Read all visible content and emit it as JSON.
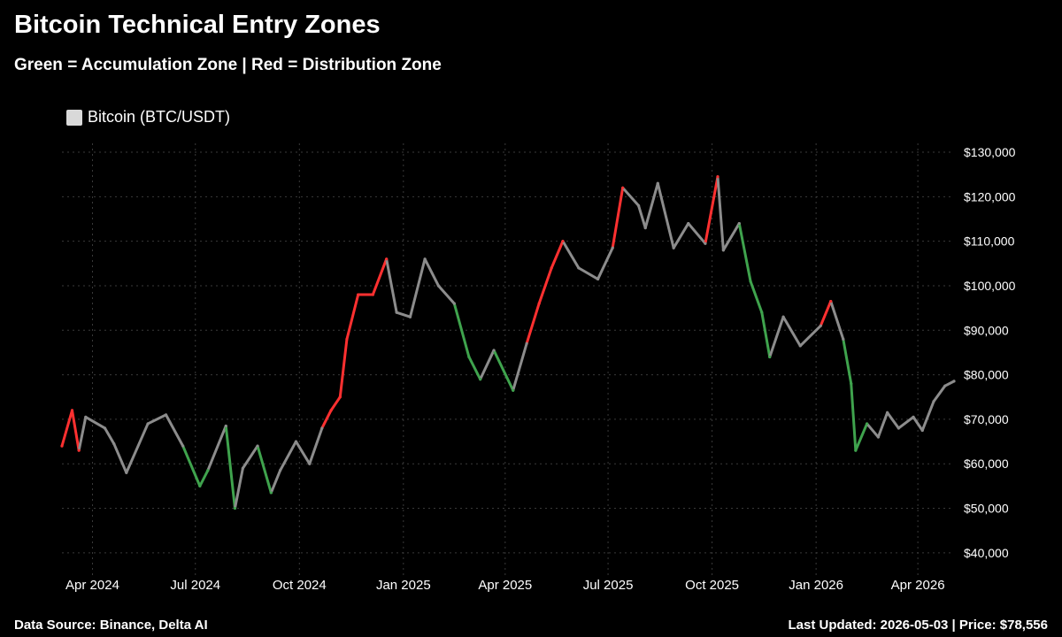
{
  "header": {
    "title": "Bitcoin Technical Entry Zones",
    "subtitle": "Green = Accumulation Zone | Red = Distribution Zone"
  },
  "legend": {
    "label": "Bitcoin (BTC/USDT)",
    "color": "#d9d9d9",
    "placement": "top-left"
  },
  "footer": {
    "source": "Data Source: Binance, Delta AI",
    "updated": "Last Updated: 2026-05-03 | Price: $78,556"
  },
  "colors": {
    "normal": "#8c8c8c",
    "accumulation": "#3fa34d",
    "distribution": "#ff3030",
    "grid": "#3a3a3a"
  },
  "chart_data": {
    "type": "line",
    "title": "Bitcoin Technical Entry Zones",
    "subtitle": "Green = Accumulation Zone | Red = Distribution Zone",
    "xlabel": "",
    "ylabel": "",
    "grid": true,
    "ylim": [
      35000,
      132000
    ],
    "y_ticks": [
      {
        "value": 130000,
        "label": "$130,000"
      },
      {
        "value": 120000,
        "label": "$120,000"
      },
      {
        "value": 110000,
        "label": "$110,000"
      },
      {
        "value": 100000,
        "label": "$100,000"
      },
      {
        "value": 90000,
        "label": "$90,000"
      },
      {
        "value": 80000,
        "label": "$80,000"
      },
      {
        "value": 70000,
        "label": "$70,000"
      },
      {
        "value": 60000,
        "label": "$60,000"
      },
      {
        "value": 50000,
        "label": "$50,000"
      },
      {
        "value": 40000,
        "label": "$40,000"
      }
    ],
    "x_range": [
      "2024-03-05",
      "2026-05-03"
    ],
    "x_ticks": [
      {
        "date": "2024-04-01",
        "label": "Apr 2024"
      },
      {
        "date": "2024-07-01",
        "label": "Jul 2024"
      },
      {
        "date": "2024-10-01",
        "label": "Oct 2024"
      },
      {
        "date": "2025-01-01",
        "label": "Jan 2025"
      },
      {
        "date": "2025-04-01",
        "label": "Apr 2025"
      },
      {
        "date": "2025-07-01",
        "label": "Jul 2025"
      },
      {
        "date": "2025-10-01",
        "label": "Oct 2025"
      },
      {
        "date": "2026-01-01",
        "label": "Jan 2026"
      },
      {
        "date": "2026-04-01",
        "label": "Apr 2026"
      }
    ],
    "series": [
      {
        "name": "Bitcoin (BTC/USDT)",
        "points": [
          [
            "2024-03-05",
            64000,
            "distribution"
          ],
          [
            "2024-03-14",
            72000,
            "distribution"
          ],
          [
            "2024-03-20",
            63000,
            "distribution"
          ],
          [
            "2024-03-26",
            70500,
            "normal"
          ],
          [
            "2024-04-12",
            68000,
            "normal"
          ],
          [
            "2024-04-20",
            64500,
            "normal"
          ],
          [
            "2024-05-01",
            58000,
            "normal"
          ],
          [
            "2024-05-20",
            69000,
            "normal"
          ],
          [
            "2024-06-05",
            71000,
            "normal"
          ],
          [
            "2024-06-20",
            64000,
            "normal"
          ],
          [
            "2024-07-05",
            55000,
            "accumulation"
          ],
          [
            "2024-07-12",
            58500,
            "accumulation"
          ],
          [
            "2024-07-28",
            68500,
            "normal"
          ],
          [
            "2024-08-05",
            50000,
            "accumulation"
          ],
          [
            "2024-08-12",
            59000,
            "normal"
          ],
          [
            "2024-08-25",
            64000,
            "normal"
          ],
          [
            "2024-09-06",
            53500,
            "accumulation"
          ],
          [
            "2024-09-14",
            58500,
            "normal"
          ],
          [
            "2024-09-28",
            65000,
            "normal"
          ],
          [
            "2024-10-10",
            60000,
            "normal"
          ],
          [
            "2024-10-21",
            68000,
            "normal"
          ],
          [
            "2024-10-29",
            72000,
            "distribution"
          ],
          [
            "2024-11-06",
            75000,
            "distribution"
          ],
          [
            "2024-11-12",
            88000,
            "distribution"
          ],
          [
            "2024-11-22",
            98000,
            "distribution"
          ],
          [
            "2024-12-05",
            98000,
            "distribution"
          ],
          [
            "2024-12-17",
            106000,
            "distribution"
          ],
          [
            "2024-12-26",
            94000,
            "normal"
          ],
          [
            "2025-01-07",
            93000,
            "normal"
          ],
          [
            "2025-01-20",
            106000,
            "normal"
          ],
          [
            "2025-02-01",
            100000,
            "normal"
          ],
          [
            "2025-02-15",
            96000,
            "normal"
          ],
          [
            "2025-02-28",
            84000,
            "accumulation"
          ],
          [
            "2025-03-10",
            79000,
            "accumulation"
          ],
          [
            "2025-03-22",
            85500,
            "normal"
          ],
          [
            "2025-04-08",
            76500,
            "accumulation"
          ],
          [
            "2025-04-20",
            87000,
            "normal"
          ],
          [
            "2025-05-01",
            96000,
            "distribution"
          ],
          [
            "2025-05-12",
            104000,
            "distribution"
          ],
          [
            "2025-05-22",
            110000,
            "distribution"
          ],
          [
            "2025-06-05",
            104000,
            "normal"
          ],
          [
            "2025-06-22",
            101500,
            "normal"
          ],
          [
            "2025-07-05",
            108500,
            "normal"
          ],
          [
            "2025-07-14",
            122000,
            "distribution"
          ],
          [
            "2025-07-28",
            118000,
            "normal"
          ],
          [
            "2025-08-03",
            113000,
            "normal"
          ],
          [
            "2025-08-14",
            123000,
            "normal"
          ],
          [
            "2025-08-28",
            108500,
            "normal"
          ],
          [
            "2025-09-10",
            114000,
            "normal"
          ],
          [
            "2025-09-25",
            109500,
            "normal"
          ],
          [
            "2025-10-06",
            124500,
            "distribution"
          ],
          [
            "2025-10-11",
            108000,
            "normal"
          ],
          [
            "2025-10-25",
            114000,
            "normal"
          ],
          [
            "2025-11-04",
            101000,
            "accumulation"
          ],
          [
            "2025-11-14",
            94000,
            "accumulation"
          ],
          [
            "2025-11-21",
            84000,
            "accumulation"
          ],
          [
            "2025-12-03",
            93000,
            "normal"
          ],
          [
            "2025-12-18",
            86500,
            "normal"
          ],
          [
            "2026-01-05",
            91000,
            "normal"
          ],
          [
            "2026-01-14",
            96500,
            "distribution"
          ],
          [
            "2026-01-25",
            88000,
            "normal"
          ],
          [
            "2026-02-01",
            78000,
            "accumulation"
          ],
          [
            "2026-02-05",
            63000,
            "accumulation"
          ],
          [
            "2026-02-15",
            69000,
            "accumulation"
          ],
          [
            "2026-02-25",
            66000,
            "normal"
          ],
          [
            "2026-03-05",
            71500,
            "normal"
          ],
          [
            "2026-03-15",
            68000,
            "normal"
          ],
          [
            "2026-03-28",
            70500,
            "normal"
          ],
          [
            "2026-04-05",
            67500,
            "normal"
          ],
          [
            "2026-04-15",
            74000,
            "normal"
          ],
          [
            "2026-04-25",
            77500,
            "normal"
          ],
          [
            "2026-05-03",
            78556,
            "normal"
          ]
        ]
      }
    ]
  }
}
